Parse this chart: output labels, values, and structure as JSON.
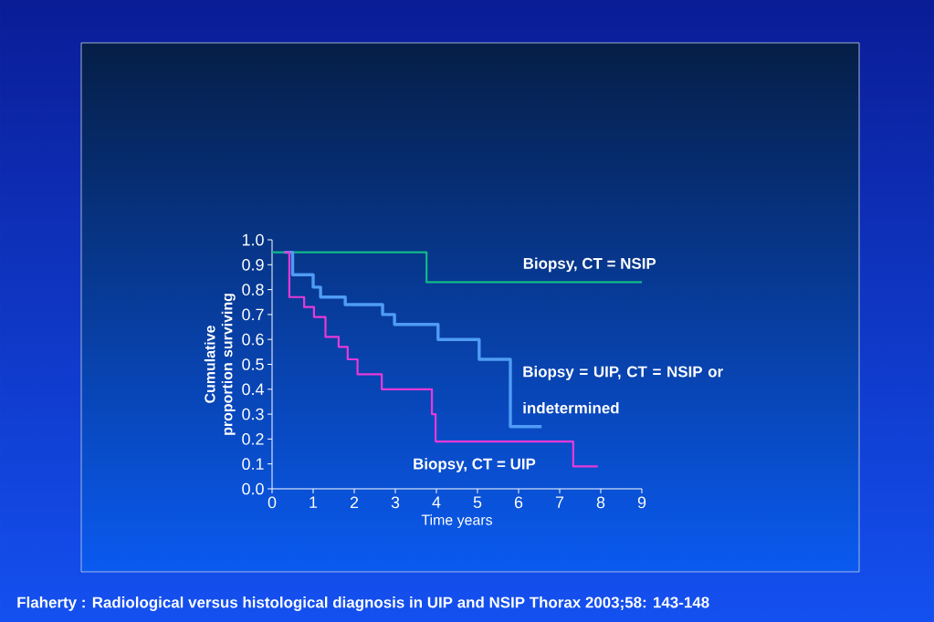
{
  "chart_data": {
    "type": "step",
    "xlabel": "Time years",
    "ylabel": "Cumulative proportion surviving",
    "xlim": [
      0,
      9
    ],
    "ylim": [
      0,
      1
    ],
    "xticks": [
      0,
      1,
      2,
      3,
      4,
      5,
      6,
      7,
      8,
      9
    ],
    "yticks": [
      {
        "value": 0,
        "label": "0.0"
      },
      {
        "value": 0.1,
        "label": "0.1"
      },
      {
        "value": 0.2,
        "label": "0.2"
      },
      {
        "value": 0.3,
        "label": "0.3"
      },
      {
        "value": 0.4,
        "label": "0.4"
      },
      {
        "value": 0.5,
        "label": "0.5"
      },
      {
        "value": 0.6,
        "label": "0.6"
      },
      {
        "value": 0.7,
        "label": "0.7"
      },
      {
        "value": 0.8,
        "label": "0.8"
      },
      {
        "value": 0.9,
        "label": "0.9"
      },
      {
        "value": 1.0,
        "label": "1.0"
      }
    ],
    "series": [
      {
        "name": "Biopsy, CT = NSIP",
        "color": "#13b88a",
        "x": [
          0,
          3.76,
          9
        ],
        "values": [
          0.95,
          0.83,
          0.83
        ]
      },
      {
        "name": "Biopsy = UIP, CT = NSIP or indetermined",
        "color": "#4f9cf5",
        "x": [
          0.3,
          0.5,
          1.0,
          1.18,
          1.78,
          2.69,
          2.98,
          4.04,
          5.04,
          5.8,
          6.56
        ],
        "values": [
          0.95,
          0.86,
          0.81,
          0.77,
          0.74,
          0.7,
          0.66,
          0.6,
          0.52,
          0.25,
          0.25
        ]
      },
      {
        "name": "Biopsy, CT = UIP",
        "color": "#e83ad8",
        "x": [
          0.3,
          0.42,
          0.78,
          1.02,
          1.3,
          1.62,
          1.84,
          2.08,
          2.67,
          3.89,
          3.98,
          7.33,
          7.93
        ],
        "values": [
          0.95,
          0.77,
          0.73,
          0.69,
          0.61,
          0.57,
          0.52,
          0.46,
          0.4,
          0.3,
          0.19,
          0.09,
          0.09
        ]
      }
    ],
    "annotations": [
      "Flaherty : Radiological versus histological diagnosis in UIP and NSIP Thorax 2003;58: 143-148"
    ]
  }
}
